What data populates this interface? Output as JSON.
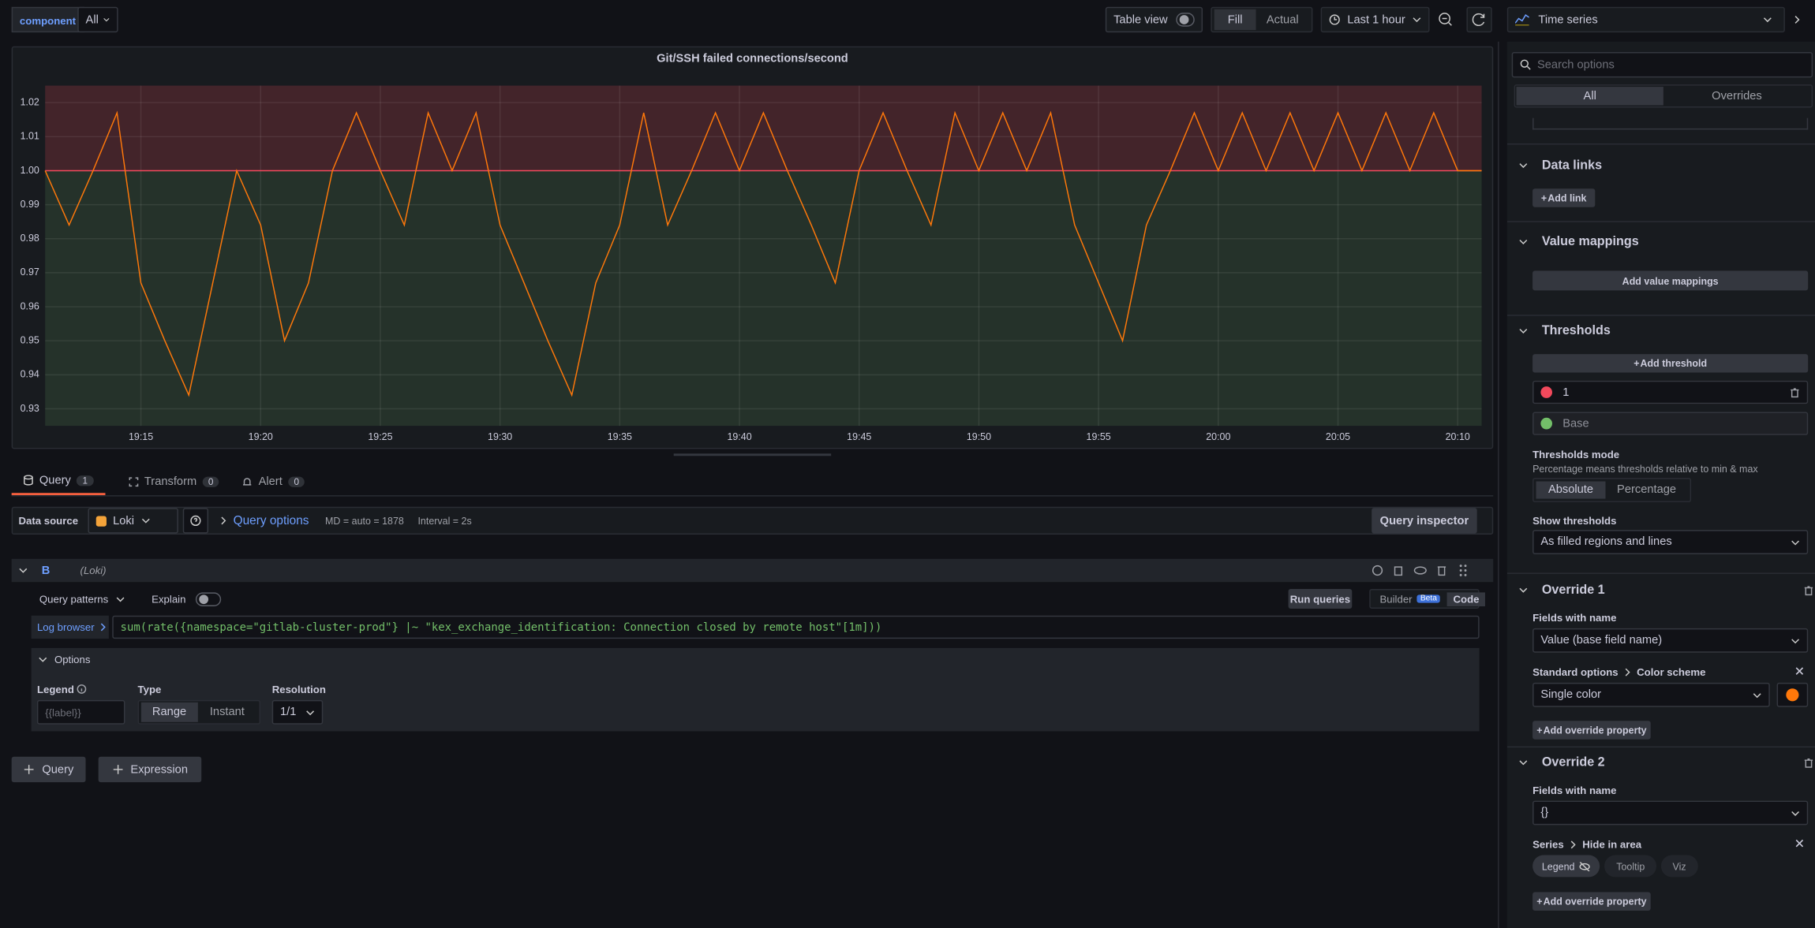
{
  "toolbar": {
    "variable_label": "component",
    "variable_value": "All",
    "table_view": "Table view",
    "fill": "Fill",
    "actual": "Actual",
    "time_range": "Last 1 hour"
  },
  "chart_data": {
    "type": "line",
    "title": "Git/SSH failed connections/second",
    "color": "#ff780a",
    "x": [
      "19:11",
      "19:12",
      "19:13",
      "19:14",
      "19:15",
      "19:16",
      "19:17",
      "19:18",
      "19:19",
      "19:20",
      "19:21",
      "19:22",
      "19:23",
      "19:24",
      "19:25",
      "19:26",
      "19:27",
      "19:28",
      "19:29",
      "19:30",
      "19:31",
      "19:32",
      "19:33",
      "19:34",
      "19:35",
      "19:36",
      "19:37",
      "19:38",
      "19:39",
      "19:40",
      "19:41",
      "19:42",
      "19:43",
      "19:44",
      "19:45",
      "19:46",
      "19:47",
      "19:48",
      "19:49",
      "19:50",
      "19:51",
      "19:52",
      "19:53",
      "19:54",
      "19:55",
      "19:56",
      "19:57",
      "19:58",
      "19:59",
      "20:00",
      "20:01",
      "20:02",
      "20:03",
      "20:04",
      "20:05",
      "20:06",
      "20:07",
      "20:08",
      "20:09",
      "20:10",
      "20:11"
    ],
    "values": [
      1,
      0.984,
      1,
      1.017,
      0.967,
      0.95,
      0.934,
      0.967,
      1,
      0.984,
      0.95,
      0.967,
      1,
      1.017,
      1,
      0.984,
      1.017,
      1,
      1.017,
      0.984,
      0.967,
      0.95,
      0.934,
      0.967,
      0.984,
      1.017,
      0.984,
      1,
      1.017,
      1,
      1.017,
      1,
      0.984,
      0.967,
      1,
      1.017,
      1,
      0.984,
      1.017,
      1,
      1.017,
      1,
      1.017,
      0.984,
      0.967,
      0.95,
      0.984,
      1,
      1.017,
      1,
      1.017,
      1,
      1.017,
      1,
      1.017,
      1,
      1.017,
      1,
      1.017,
      1,
      1
    ],
    "xlim": [
      "19:11",
      "20:11"
    ],
    "xticks": [
      "19:15",
      "19:20",
      "19:25",
      "19:30",
      "19:35",
      "19:40",
      "19:45",
      "19:50",
      "19:55",
      "20:00",
      "20:05",
      "20:10"
    ],
    "ylim": [
      0.925,
      1.025
    ],
    "yticks": [
      0.93,
      0.94,
      0.95,
      0.96,
      0.97,
      0.98,
      0.99,
      {
        "value": 1,
        "label": "1.00"
      },
      1.01,
      1.02
    ],
    "grid": true,
    "thresholds": [
      {
        "value": 1,
        "color": "#f2495c"
      }
    ],
    "threshold_base_color": "#73bf69"
  },
  "query_tabs": [
    {
      "label": "Query",
      "count": "1"
    },
    {
      "label": "Transform",
      "count": "0"
    },
    {
      "label": "Alert",
      "count": "0"
    }
  ],
  "query_bar": {
    "data_source_label": "Data source",
    "data_source": "Loki",
    "query_options": "Query options",
    "max_data_points": "MD = auto = 1878",
    "interval": "Interval = 2s",
    "inspector": "Query inspector"
  },
  "query": {
    "ref_id": "B",
    "datasource": "(Loki)",
    "patterns": "Query patterns",
    "explain": "Explain",
    "run": "Run queries",
    "builder": "Builder",
    "beta": "Beta",
    "code": "Code",
    "log_browser": "Log browser",
    "expr": "sum(rate({namespace=\"gitlab-cluster-prod\"} |~ \"kex_exchange_identification: Connection closed by remote host\"[1m]))",
    "options_title": "Options",
    "legend_label": "Legend",
    "legend_placeholder": "{{label}}",
    "type_label": "Type",
    "type_range": "Range",
    "type_instant": "Instant",
    "resolution_label": "Resolution",
    "resolution": "1/1"
  },
  "add_buttons": [
    "Query",
    "Expression"
  ],
  "options_pane": {
    "viz": "Time series",
    "search_placeholder": "Search options",
    "tabs": [
      "All",
      "Overrides"
    ],
    "data_links": {
      "title": "Data links",
      "button": "Add link"
    },
    "value_mappings": {
      "title": "Value mappings",
      "button": "Add value mappings"
    },
    "thresholds": {
      "title": "Thresholds",
      "button": "Add threshold",
      "base": "Base",
      "mode_label": "Thresholds mode",
      "mode_desc": "Percentage means thresholds relative to min & max",
      "modes": [
        "Absolute",
        "Percentage"
      ],
      "show_label": "Show thresholds",
      "show_value": "As filled regions and lines"
    },
    "overrides": [
      {
        "title": "Override 1",
        "matcher_label": "Fields with name",
        "matcher_value": "Value (base field name)",
        "property_path": [
          "Standard options",
          "Color scheme"
        ],
        "property_value": "Single color",
        "color": "#ff780a",
        "add": "Add override property"
      },
      {
        "title": "Override 2",
        "matcher_label": "Fields with name",
        "matcher_value": "{}",
        "property_path": [
          "Series",
          "Hide in area"
        ],
        "chips": [
          "Legend",
          "Tooltip",
          "Viz"
        ],
        "add": "Add override property"
      }
    ]
  }
}
